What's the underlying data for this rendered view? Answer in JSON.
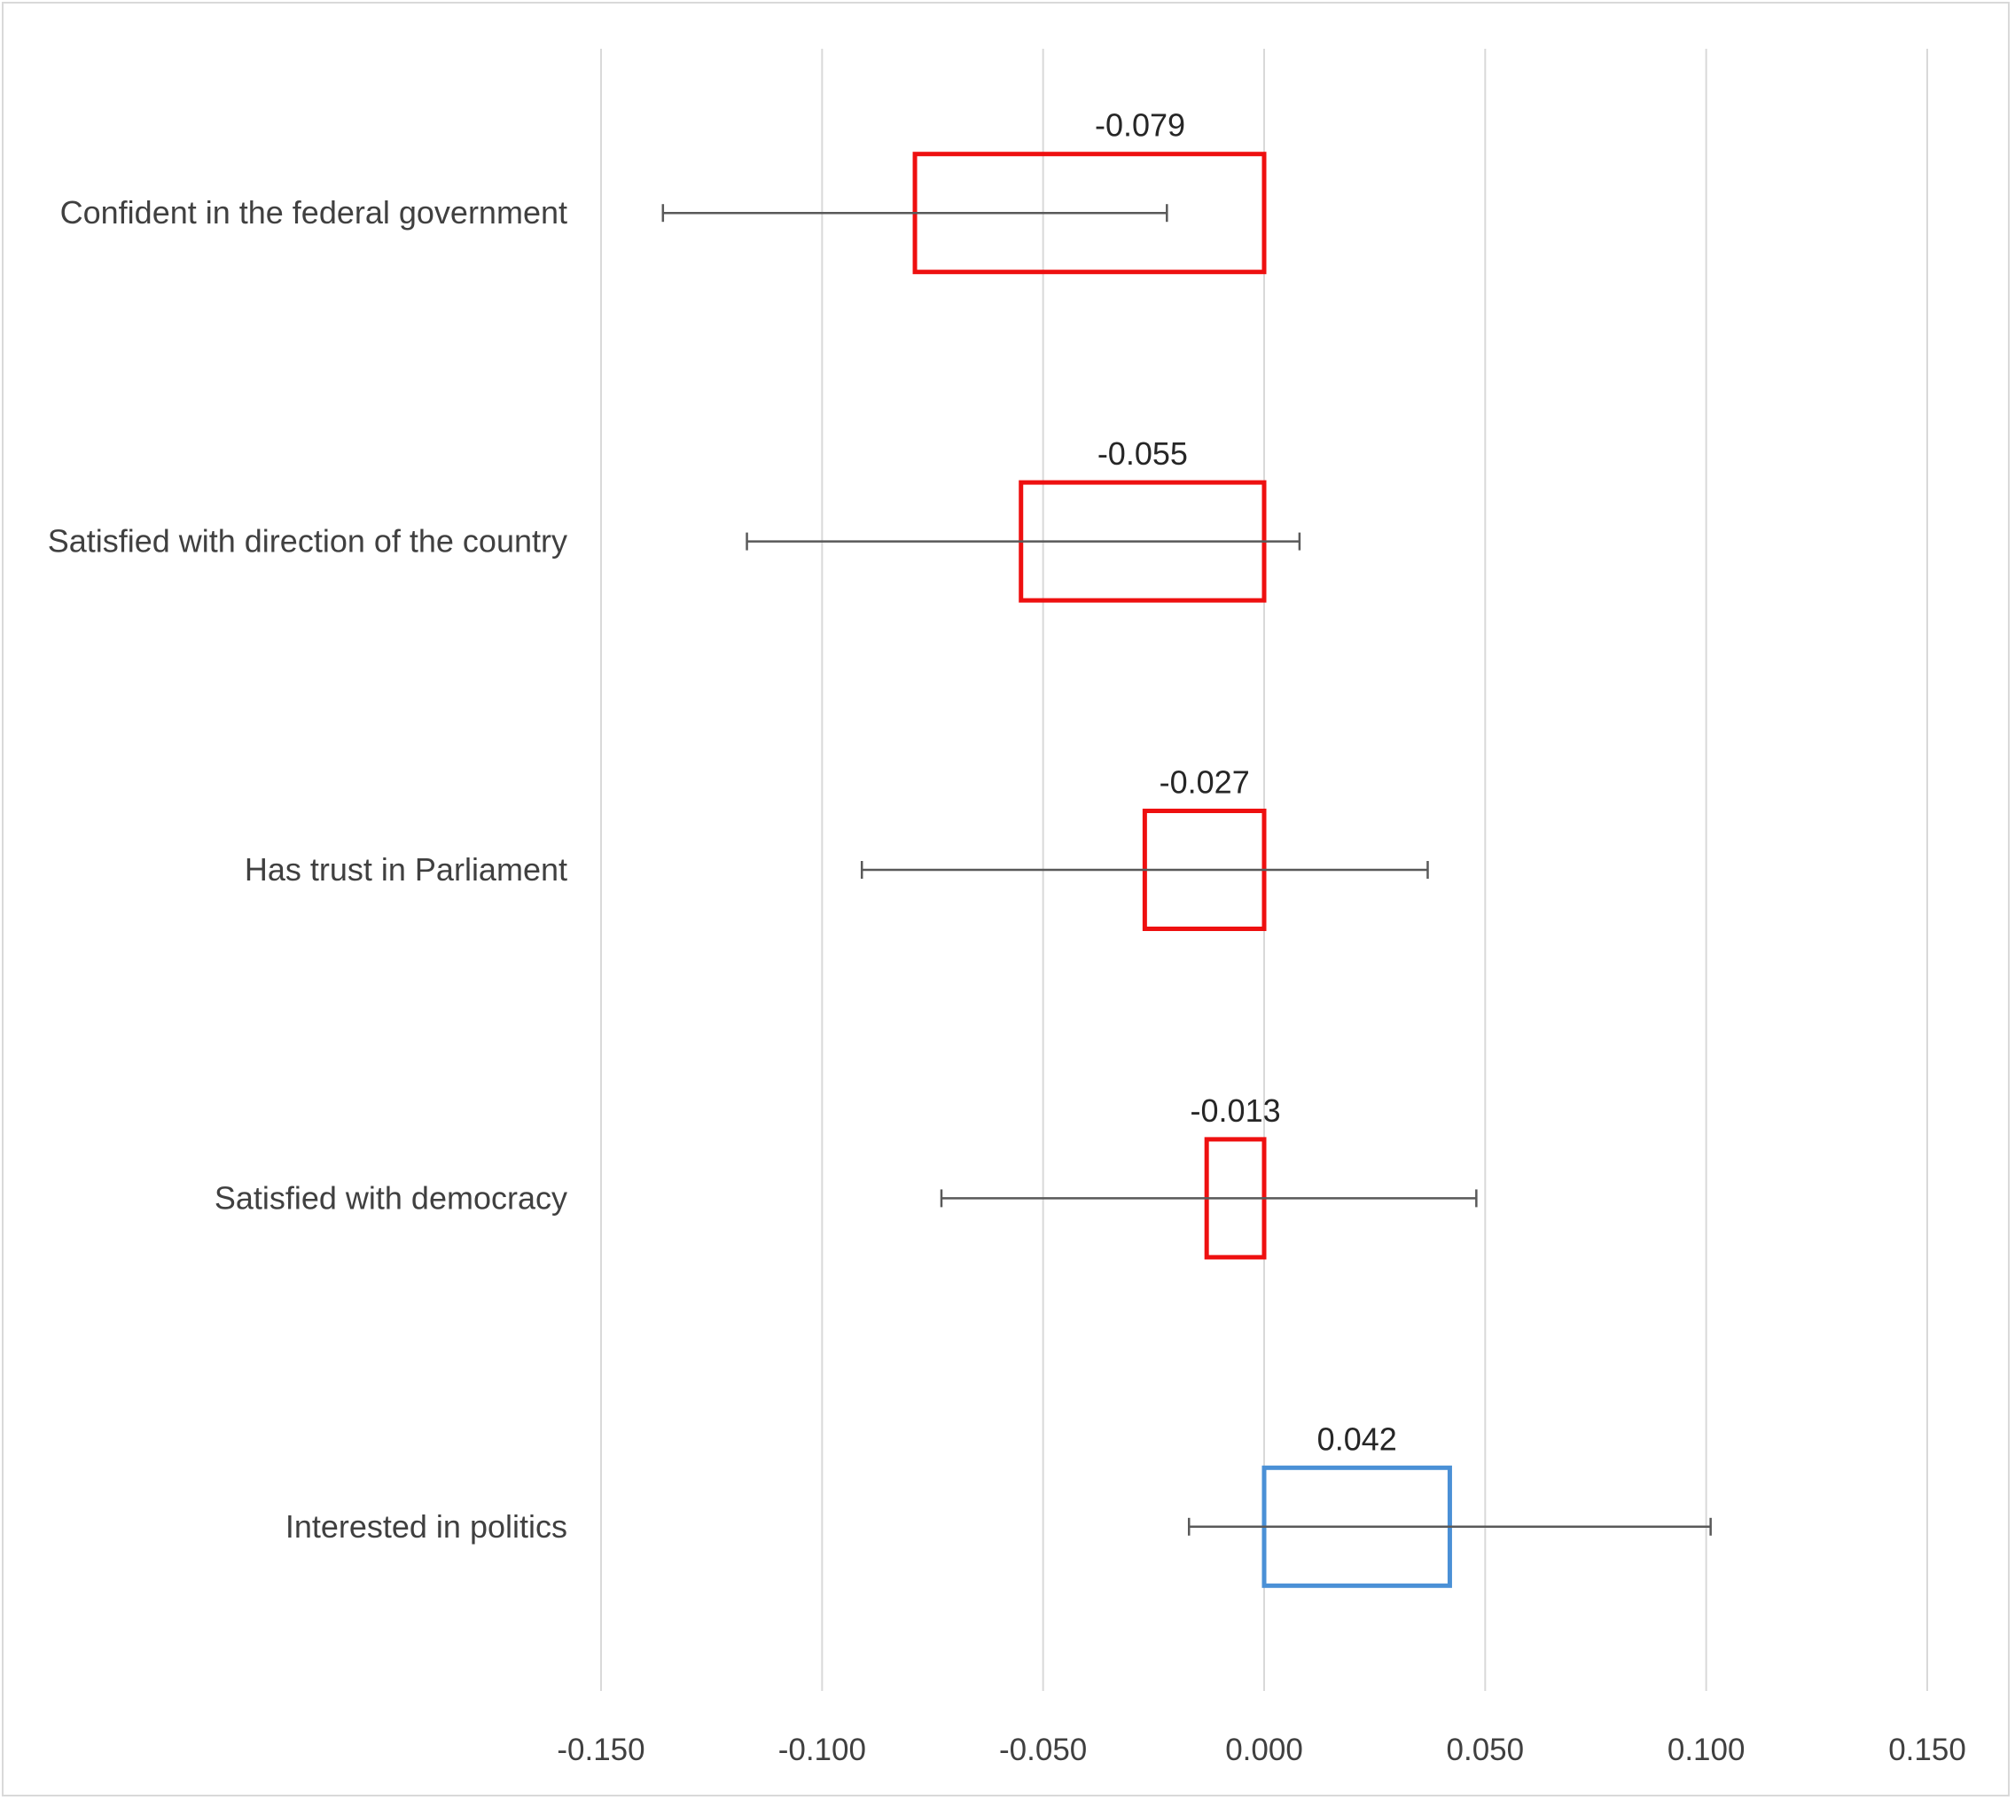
{
  "chart_data": {
    "type": "bar",
    "orientation": "horizontal",
    "title": "",
    "xlabel": "",
    "ylabel": "",
    "categories": [
      "Confident in the federal government",
      "Satisfied with direction of the country",
      "Has trust in Parliament",
      "Satisfied with democracy",
      "Interested in politics"
    ],
    "values": [
      -0.079,
      -0.055,
      -0.027,
      -0.013,
      0.042
    ],
    "data_labels": [
      "-0.079",
      "-0.055",
      "-0.027",
      "-0.013",
      "0.042"
    ],
    "error_low": [
      -0.136,
      -0.117,
      -0.091,
      -0.073,
      -0.017
    ],
    "error_high": [
      -0.022,
      0.008,
      0.037,
      0.048,
      0.101
    ],
    "xlim": [
      -0.15,
      0.15
    ],
    "xticks": [
      -0.15,
      -0.1,
      -0.05,
      0.0,
      0.05,
      0.1,
      0.15
    ],
    "xtick_labels": [
      "-0.150",
      "-0.100",
      "-0.050",
      "0.000",
      "0.050",
      "0.100",
      "0.150"
    ],
    "grid": "vertical",
    "legend": "none",
    "colors": {
      "negative": "#ee1010",
      "positive": "#4a90d6",
      "gridline": "#d9d9d9",
      "error_bar": "#595959",
      "text": "#404040"
    }
  }
}
